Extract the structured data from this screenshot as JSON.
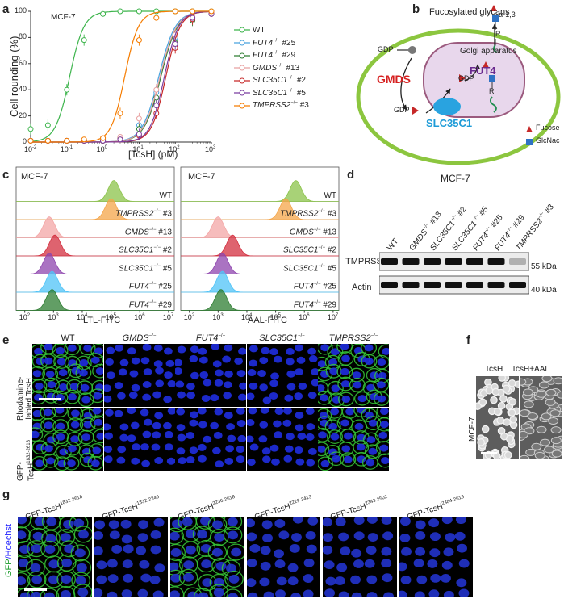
{
  "panels": {
    "a": "a",
    "b": "b",
    "c": "c",
    "d": "d",
    "e": "e",
    "f": "f",
    "g": "g"
  },
  "panel_a": {
    "cell_line": "MCF-7",
    "ylabel": "Cell rounding (%)",
    "xlabel": "[TcsH] (pM)",
    "yticks": [
      "0",
      "20",
      "40",
      "60",
      "80",
      "100"
    ],
    "xticks": [
      "10",
      "10",
      "10",
      "10",
      "10",
      "10"
    ],
    "xtick_exp": [
      "-2",
      "-1",
      "0",
      "1",
      "2",
      "3"
    ],
    "legend": [
      {
        "label": "WT",
        "gene": "",
        "suffix": "",
        "color": "#3cb44b"
      },
      {
        "label": "",
        "gene": "FUT4",
        "suffix": " #25",
        "color": "#4aa3df"
      },
      {
        "label": "",
        "gene": "FUT4",
        "suffix": " #29",
        "color": "#2e7d32"
      },
      {
        "label": "",
        "gene": "GMDS",
        "suffix": " #13",
        "color": "#e8a0a0"
      },
      {
        "label": "",
        "gene": "SLC35C1",
        "suffix": " #2",
        "color": "#c62828"
      },
      {
        "label": "",
        "gene": "SLC35C1",
        "suffix": " #5",
        "color": "#7b3fa0"
      },
      {
        "label": "",
        "gene": "TMPRSS2",
        "suffix": " #3",
        "color": "#f57c00"
      }
    ],
    "ko_sup": "−/−"
  },
  "chart_data": {
    "type": "scatter",
    "xscale": "log",
    "xlim": [
      0.01,
      1000
    ],
    "ylim": [
      0,
      100
    ],
    "xlabel": "[TcsH] (pM)",
    "ylabel": "Cell rounding (%)",
    "x": [
      0.01,
      0.03,
      0.1,
      0.3,
      1,
      3,
      10,
      30,
      100,
      300,
      1000
    ],
    "series": [
      {
        "name": "WT",
        "color": "#3cb44b",
        "ec50": 0.12,
        "hill": 2.2,
        "values": [
          10,
          13,
          40,
          78,
          98,
          100,
          100,
          100,
          100,
          100,
          100
        ]
      },
      {
        "name": "FUT4−/− #25",
        "color": "#4aa3df",
        "ec50": 35,
        "hill": 1.9,
        "values": [
          1,
          1,
          1,
          1,
          2,
          3,
          13,
          38,
          80,
          95,
          99
        ]
      },
      {
        "name": "FUT4−/− #29",
        "color": "#2e7d32",
        "ec50": 40,
        "hill": 1.9,
        "values": [
          1,
          1,
          1,
          1,
          1,
          3,
          10,
          34,
          76,
          93,
          98
        ]
      },
      {
        "name": "GMDS−/− #13",
        "color": "#e8a0a0",
        "ec50": 38,
        "hill": 1.9,
        "values": [
          1,
          1,
          1,
          1,
          3,
          4,
          18,
          40,
          82,
          96,
          99
        ]
      },
      {
        "name": "SLC35C1−/− #2",
        "color": "#c62828",
        "ec50": 55,
        "hill": 2.2,
        "values": [
          1,
          1,
          1,
          1,
          1,
          2,
          5,
          22,
          72,
          94,
          98
        ]
      },
      {
        "name": "SLC35C1−/− #5",
        "color": "#7b3fa0",
        "ec50": 50,
        "hill": 2.2,
        "values": [
          1,
          1,
          1,
          1,
          1,
          2,
          6,
          28,
          75,
          95,
          98
        ]
      },
      {
        "name": "TMPRSS2−/− #3",
        "color": "#f57c00",
        "ec50": 4,
        "hill": 2.3,
        "values": [
          1,
          1,
          1,
          2,
          3,
          22,
          78,
          95,
          100,
          100,
          100
        ]
      }
    ]
  },
  "panel_b": {
    "title": "Fucosylated glycans",
    "alpha": "α-1,3",
    "golgi": "Golgi apparatus",
    "gmds": "GMDS",
    "fut4": "FUT4",
    "slc": "SLC35C1",
    "gdp1": "GDP",
    "gdp2": "GDP",
    "gdp3": "GDP",
    "r1": "R",
    "r2": "R",
    "legend_fucose": "Fucose",
    "legend_glcnac": "GlcNac"
  },
  "panel_c": {
    "left_cell": "MCF-7",
    "right_cell": "MCF-7",
    "left_xlabel": "LTL-FITC",
    "right_xlabel": "AAL-FITC",
    "xticks": [
      "10",
      "10",
      "10",
      "10",
      "10",
      "10"
    ],
    "xtick_exp": [
      "2",
      "3",
      "4",
      "5",
      "6",
      "7"
    ],
    "rows": [
      {
        "gene": "",
        "label": "WT",
        "suffix": "",
        "color": "#8bc34a"
      },
      {
        "gene": "TMPRSS2",
        "label": "",
        "suffix": " #3",
        "color": "#f4a54a"
      },
      {
        "gene": "GMDS",
        "label": "",
        "suffix": " #13",
        "color": "#f3a6a6"
      },
      {
        "gene": "SLC35C1",
        "label": "",
        "suffix": " #2",
        "color": "#d32f3f"
      },
      {
        "gene": "SLC35C1",
        "label": "",
        "suffix": " #5",
        "color": "#8e44ad"
      },
      {
        "gene": "FUT4",
        "label": "",
        "suffix": " #25",
        "color": "#4fc3f7"
      },
      {
        "gene": "FUT4",
        "label": "",
        "suffix": " #29",
        "color": "#2e7d32"
      }
    ]
  },
  "panel_d": {
    "cell_line": "MCF-7",
    "lanes": [
      {
        "gene": "",
        "label": "WT",
        "suffix": ""
      },
      {
        "gene": "GMDS",
        "label": "",
        "suffix": " #13"
      },
      {
        "gene": "SLC35C1",
        "label": "",
        "suffix": " #2"
      },
      {
        "gene": "SLC35C1",
        "label": "",
        "suffix": " #5"
      },
      {
        "gene": "FUT4",
        "label": "",
        "suffix": " #25"
      },
      {
        "gene": "FUT4",
        "label": "",
        "suffix": " #29"
      },
      {
        "gene": "TMPRSS2",
        "label": "",
        "suffix": " #3"
      }
    ],
    "row1": "TMPRSS2",
    "row2": "Actin",
    "kda1": "55 kDa",
    "kda2": "40 kDa"
  },
  "panel_e": {
    "cols": [
      {
        "gene": "",
        "label": "WT"
      },
      {
        "gene": "GMDS",
        "label": ""
      },
      {
        "gene": "FUT4",
        "label": ""
      },
      {
        "gene": "SLC35C1",
        "label": ""
      },
      {
        "gene": "TMPRSS2",
        "label": ""
      }
    ],
    "row1a": "Rhodamine-",
    "row1b": "labled TcsH",
    "row2a": "GFP-",
    "row2b": "TcsH",
    "row2sup": "1832-2618"
  },
  "panel_f": {
    "col1": "TcsH",
    "col2": "TcsH+AAL",
    "side": "MCF-7"
  },
  "panel_g": {
    "prefix": "GFP-TcsH",
    "constructs": [
      "1832-2618",
      "1832-2246",
      "2236-2618",
      "2229-2413",
      "2343-2502",
      "2484-2618"
    ],
    "side_gfp": "GFP",
    "side_hoechst": "/Hoechst"
  }
}
